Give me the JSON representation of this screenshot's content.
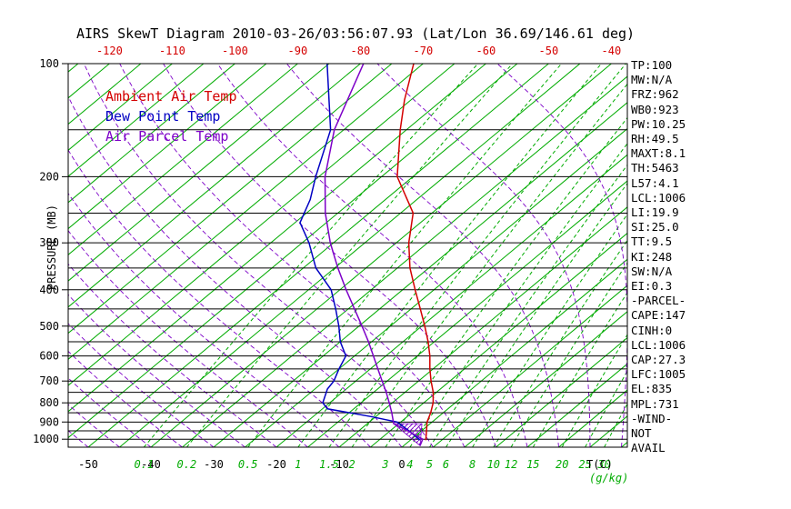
{
  "title": "AIRS SkewT Diagram 2010-03-26/03:56:07.93 (Lat/Lon 36.69/146.61 deg)",
  "colors": {
    "ambient": "#d40000",
    "dew": "#0000c3",
    "parcel": "#7d00c8",
    "isoline_green": "#00ab00",
    "axis_black": "#000000"
  },
  "legend": [
    {
      "label": "Ambient Air Temp",
      "color": "#d40000"
    },
    {
      "label": "Dew Point Temp",
      "color": "#0000c3"
    },
    {
      "label": "Air Parcel Temp",
      "color": "#7d00c8"
    }
  ],
  "axes": {
    "pressure_label": "PRESSURE (MB)",
    "temp_unit_label": "T(C)",
    "mixing_unit_label": "(g/kg)",
    "pressure_ticks": [
      100,
      200,
      300,
      400,
      500,
      600,
      700,
      800,
      900,
      1000
    ],
    "top_temp_ticks": [
      -120,
      -110,
      -100,
      -90,
      -80,
      -70,
      -60,
      -50,
      -40
    ],
    "bottom_temp_ticks": [
      -50,
      -40,
      -30,
      -20,
      -10,
      0
    ],
    "mixing_ratio_values": [
      0.1,
      0.2,
      0.5,
      1,
      1.5,
      2,
      3,
      4,
      5,
      6,
      8,
      10,
      12,
      15,
      20,
      25,
      30
    ]
  },
  "stats_panel": [
    "TP:100",
    "MW:N/A",
    "FRZ:962",
    "WB0:923",
    "PW:10.25",
    "RH:49.5",
    "MAXT:8.1",
    "TH:5463",
    "L57:4.1",
    "LCL:1006",
    "LI:19.9",
    "SI:25.0",
    "TT:9.5",
    "KI:248",
    "SW:N/A",
    "EI:0.3",
    "-PARCEL-",
    "CAPE:147",
    "CINH:0",
    "LCL:1006",
    "CAP:27.3",
    "LFC:1005",
    "EL:835",
    "MPL:731",
    "-WIND-",
    "NOT",
    "AVAIL"
  ],
  "chart_data": {
    "type": "line",
    "title": "AIRS SkewT Diagram 2010-03-26/03:56:07.93 (Lat/Lon 36.69/146.61 deg)",
    "xlabel": "T(C)",
    "ylabel": "PRESSURE (MB)",
    "y_scale": "log",
    "pressure_range_mb": [
      1050,
      100
    ],
    "bottom_temp_range_c": [
      -50,
      40
    ],
    "isotherm_interval_c": 5,
    "pressure_line_interval_mb": 50,
    "grid": {
      "isotherms_color": "#00ab00",
      "mixing_ratio_lines_g_per_kg": [
        0.1,
        0.2,
        0.5,
        1,
        1.5,
        2,
        3,
        4,
        5,
        6,
        8,
        10,
        12,
        15,
        20,
        25,
        30
      ],
      "moist_adiabats_dashed": true
    },
    "series": [
      {
        "name": "Ambient Air Temp",
        "color": "#d40000",
        "points_p_t": [
          [
            1006,
            2.5
          ],
          [
            1000,
            2.3
          ],
          [
            950,
            0.8
          ],
          [
            900,
            -0.8
          ],
          [
            850,
            -2.0
          ],
          [
            800,
            -3.5
          ],
          [
            750,
            -5.5
          ],
          [
            700,
            -8.0
          ],
          [
            650,
            -10.5
          ],
          [
            600,
            -13.0
          ],
          [
            550,
            -16.0
          ],
          [
            500,
            -19.5
          ],
          [
            450,
            -23.5
          ],
          [
            400,
            -28.0
          ],
          [
            350,
            -33.0
          ],
          [
            300,
            -38.0
          ],
          [
            250,
            -43.0
          ],
          [
            200,
            -52.5
          ],
          [
            150,
            -61.0
          ],
          [
            125,
            -66.0
          ],
          [
            100,
            -71.5
          ]
        ]
      },
      {
        "name": "Dew Point Temp",
        "color": "#0000c3",
        "points_p_t": [
          [
            1006,
            1.5
          ],
          [
            1000,
            1.2
          ],
          [
            950,
            -2.0
          ],
          [
            900,
            -5.6
          ],
          [
            870,
            -10.8
          ],
          [
            830,
            -19.2
          ],
          [
            800,
            -21.1
          ],
          [
            735,
            -23.0
          ],
          [
            700,
            -23.5
          ],
          [
            650,
            -25.0
          ],
          [
            600,
            -26.4
          ],
          [
            550,
            -30.0
          ],
          [
            500,
            -33.2
          ],
          [
            450,
            -37.0
          ],
          [
            400,
            -41.4
          ],
          [
            350,
            -48.0
          ],
          [
            300,
            -53.9
          ],
          [
            265,
            -59.2
          ],
          [
            230,
            -62.0
          ],
          [
            200,
            -65.5
          ],
          [
            150,
            -72.1
          ],
          [
            100,
            -85.3
          ]
        ]
      },
      {
        "name": "Air Parcel Temp",
        "color": "#7d00c8",
        "points_p_t": [
          [
            1040,
            2.6
          ],
          [
            1000,
            1.8
          ],
          [
            950,
            -2.2
          ],
          [
            909,
            -5.8
          ],
          [
            850,
            -8.2
          ],
          [
            800,
            -10.5
          ],
          [
            750,
            -13.0
          ],
          [
            700,
            -15.8
          ],
          [
            650,
            -18.8
          ],
          [
            600,
            -22.0
          ],
          [
            550,
            -25.5
          ],
          [
            500,
            -29.5
          ],
          [
            450,
            -34.0
          ],
          [
            400,
            -39.0
          ],
          [
            350,
            -44.5
          ],
          [
            300,
            -50.5
          ],
          [
            250,
            -57.0
          ],
          [
            200,
            -64.0
          ],
          [
            150,
            -71.5
          ],
          [
            100,
            -79.5
          ]
        ]
      }
    ],
    "cape_hatch_polygon_p_t": [
      [
        909,
        -5.8
      ],
      [
        909,
        -1.3
      ],
      [
        1040,
        2.6
      ]
    ]
  }
}
